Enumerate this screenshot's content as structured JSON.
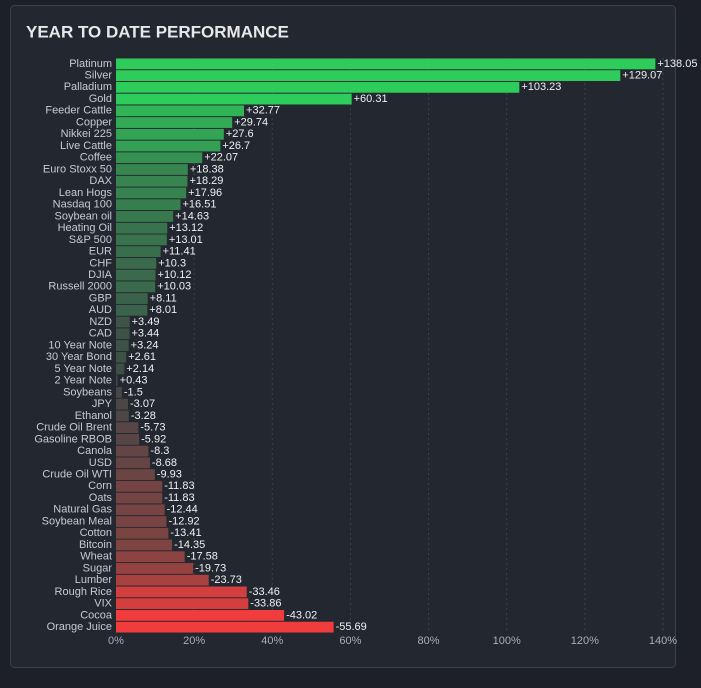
{
  "chart_data": {
    "type": "bar",
    "orientation": "horizontal",
    "title": "YEAR TO DATE PERFORMANCE",
    "categories": [
      "Platinum",
      "Silver",
      "Palladium",
      "Gold",
      "Feeder Cattle",
      "Copper",
      "Nikkei 225",
      "Live Cattle",
      "Coffee",
      "Euro Stoxx 50",
      "DAX",
      "Lean Hogs",
      "Nasdaq 100",
      "Soybean oil",
      "Heating Oil",
      "S&P 500",
      "EUR",
      "CHF",
      "DJIA",
      "Russell 2000",
      "GBP",
      "AUD",
      "NZD",
      "CAD",
      "10 Year Note",
      "30 Year Bond",
      "5 Year Note",
      "2 Year Note",
      "Soybeans",
      "JPY",
      "Ethanol",
      "Crude Oil Brent",
      "Gasoline RBOB",
      "Canola",
      "USD",
      "Crude Oil WTI",
      "Corn",
      "Oats",
      "Natural Gas",
      "Soybean Meal",
      "Cotton",
      "Bitcoin",
      "Wheat",
      "Sugar",
      "Lumber",
      "Rough Rice",
      "VIX",
      "Cocoa",
      "Orange Juice"
    ],
    "values": [
      138.05,
      129.07,
      103.23,
      60.31,
      32.77,
      29.74,
      27.6,
      26.7,
      22.07,
      18.38,
      18.29,
      17.96,
      16.51,
      14.63,
      13.12,
      13.01,
      11.41,
      10.3,
      10.12,
      10.03,
      8.11,
      8.01,
      3.49,
      3.44,
      3.24,
      2.61,
      2.14,
      0.43,
      -1.5,
      -3.07,
      -3.28,
      -5.73,
      -5.92,
      -8.3,
      -8.68,
      -9.93,
      -11.83,
      -11.83,
      -12.44,
      -12.92,
      -13.41,
      -14.35,
      -17.58,
      -19.73,
      -23.73,
      -33.46,
      -33.86,
      -43.02,
      -55.69
    ],
    "value_labels": [
      "+138.05",
      "+129.07",
      "+103.23",
      "+60.31",
      "+32.77",
      "+29.74",
      "+27.6",
      "+26.7",
      "+22.07",
      "+18.38",
      "+18.29",
      "+17.96",
      "+16.51",
      "+14.63",
      "+13.12",
      "+13.01",
      "+11.41",
      "+10.3",
      "+10.12",
      "+10.03",
      "+8.11",
      "+8.01",
      "+3.49",
      "+3.44",
      "+3.24",
      "+2.61",
      "+2.14",
      "+0.43",
      "-1.5",
      "-3.07",
      "-3.28",
      "-5.73",
      "-5.92",
      "-8.3",
      "-8.68",
      "-9.93",
      "-11.83",
      "-11.83",
      "-12.44",
      "-12.92",
      "-13.41",
      "-14.35",
      "-17.58",
      "-19.73",
      "-23.73",
      "-33.46",
      "-33.86",
      "-43.02",
      "-55.69"
    ],
    "xlim": [
      0,
      140
    ],
    "xticks": [
      {
        "value": 0,
        "label": "0%"
      },
      {
        "value": 20,
        "label": "20%"
      },
      {
        "value": 40,
        "label": "40%"
      },
      {
        "value": 60,
        "label": "60%"
      },
      {
        "value": 80,
        "label": "80%"
      },
      {
        "value": 100,
        "label": "100%"
      },
      {
        "value": 120,
        "label": "120%"
      },
      {
        "value": 140,
        "label": "140%"
      }
    ],
    "grid": true,
    "positive_color": "#2ecc5a",
    "negative_color": "#f03c3c",
    "neutral_color": "#3e4846"
  }
}
